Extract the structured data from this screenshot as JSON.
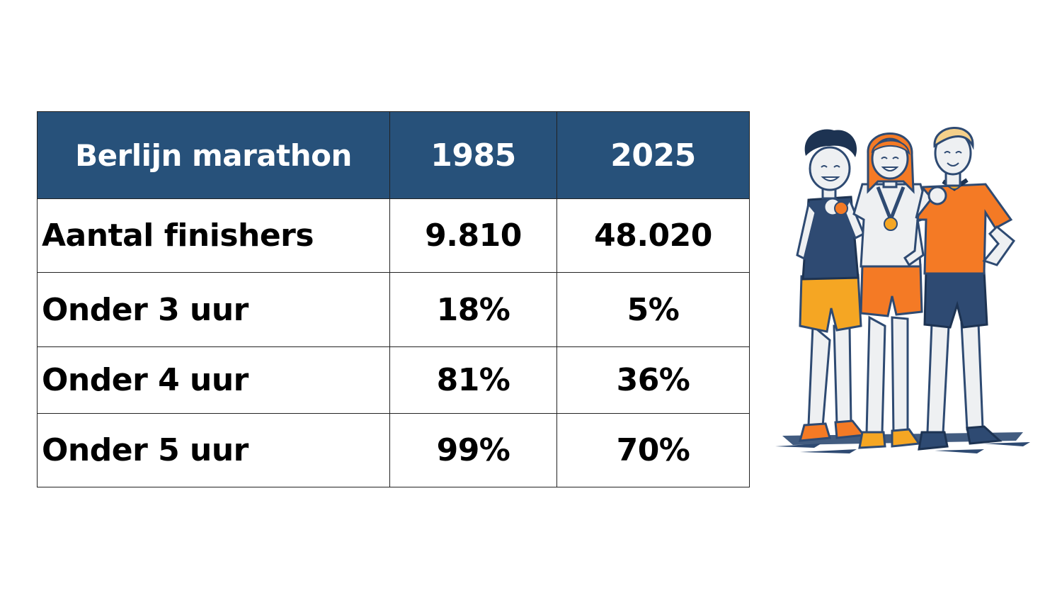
{
  "chart_data": {
    "type": "table",
    "columns": [
      "Berlijn marathon",
      "1985",
      "2025"
    ],
    "rows": [
      {
        "label": "Aantal finishers",
        "values": [
          "9.810",
          "48.020"
        ]
      },
      {
        "label": "Onder 3 uur",
        "values": [
          "18%",
          "5%"
        ]
      },
      {
        "label": "Onder 4 uur",
        "values": [
          "81%",
          "36%"
        ]
      },
      {
        "label": "Onder 5 uur",
        "values": [
          "99%",
          "70%"
        ]
      }
    ]
  },
  "colors": {
    "header_background": "#27517a",
    "header_text": "#ffffff",
    "border": "#222222",
    "accent_orange": "#f47a25",
    "accent_yellow": "#f5a623",
    "navy": "#2e4a72"
  },
  "illustration": {
    "icon": "three-runners-with-medals-illustration"
  }
}
